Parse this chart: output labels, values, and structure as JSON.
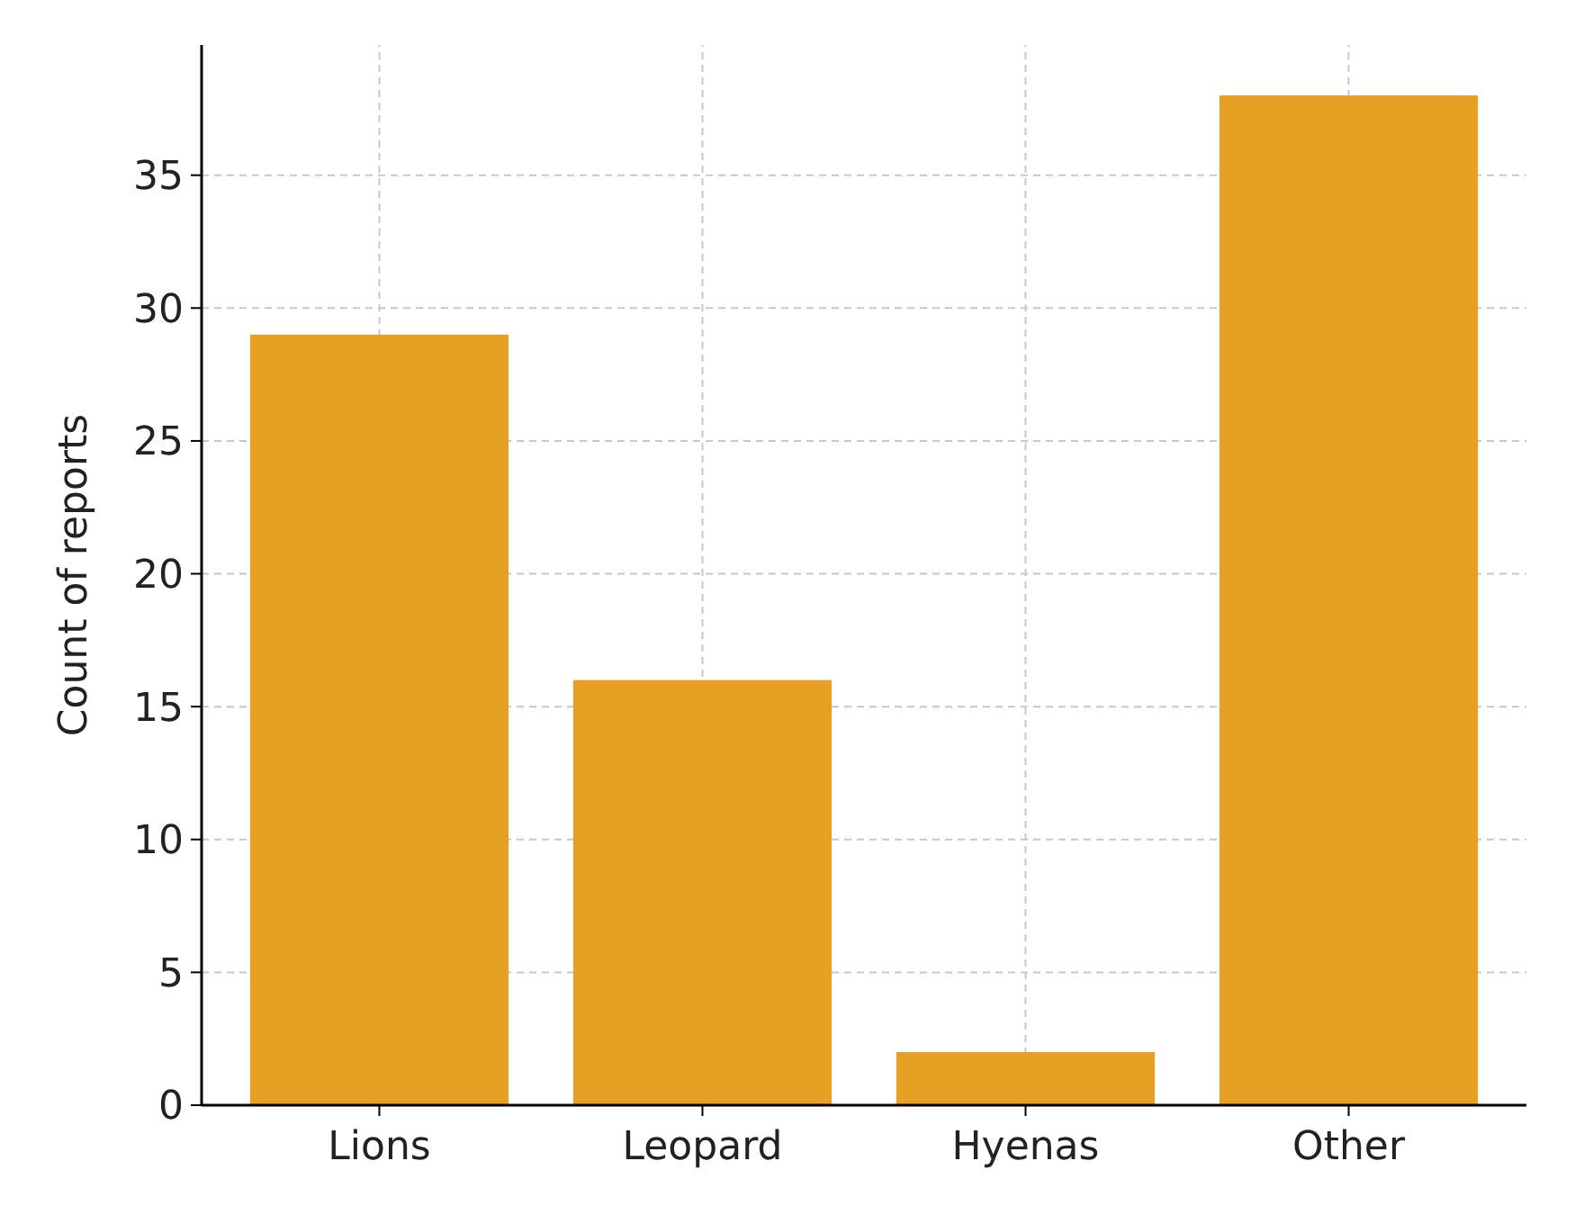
{
  "chart_data": {
    "type": "bar",
    "ylabel": "Count of reports",
    "categories": [
      "Lions",
      "Leopard",
      "Hyenas",
      "Other"
    ],
    "values": [
      29,
      16,
      2,
      38
    ],
    "color": "#e6a024",
    "ylim": [
      0,
      39.9
    ],
    "yticks": [
      0,
      5,
      10,
      15,
      20,
      25,
      30,
      35
    ],
    "grid": true
  }
}
